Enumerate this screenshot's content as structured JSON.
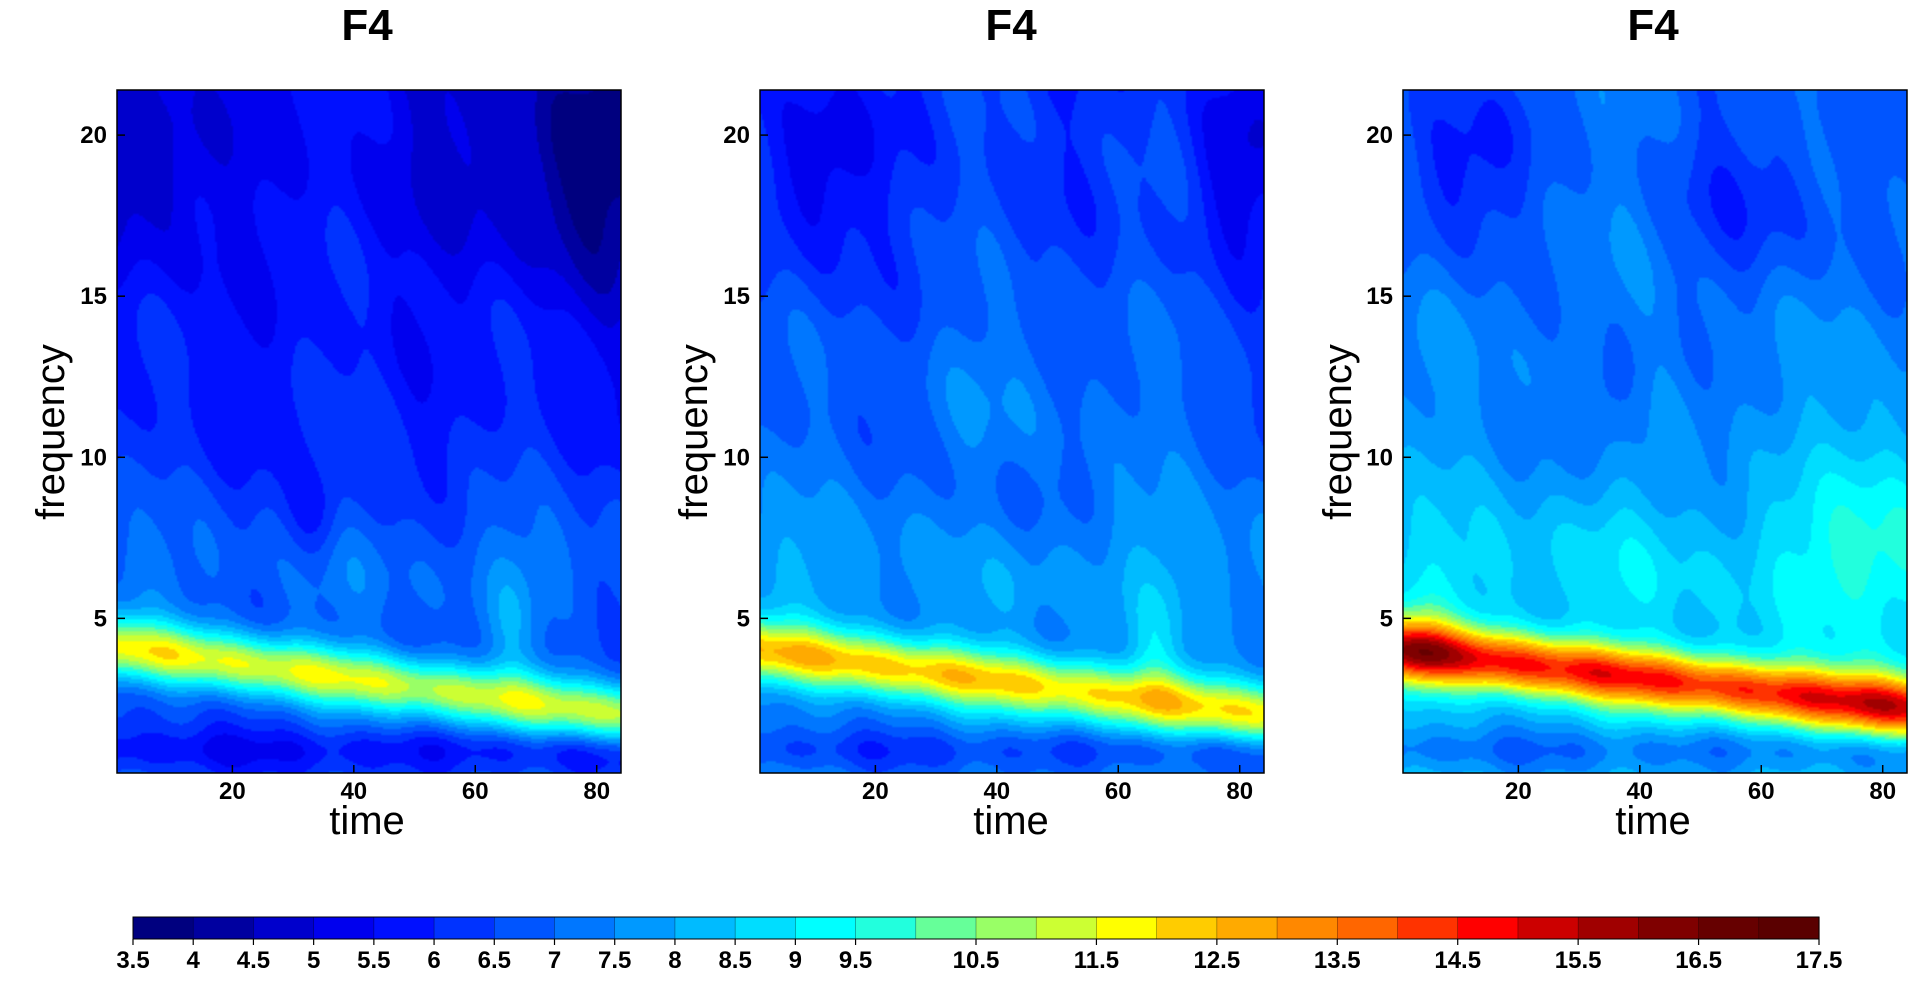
{
  "chart_data": [
    {
      "type": "heatmap",
      "title": "F4",
      "xlabel": "time",
      "ylabel": "frequency",
      "xlim": [
        1,
        84
      ],
      "ylim": [
        0.2,
        21.4
      ],
      "x_ticks": [
        "20",
        "40",
        "60",
        "80"
      ],
      "y_ticks": [
        "5",
        "10",
        "15",
        "20"
      ],
      "description": "field values approximated by a smooth model of the contour map",
      "base": 6.0,
      "band_peak": 11.0,
      "band_center_start": 4.1,
      "band_center_end": 2.0,
      "features": [
        {
          "t": 5,
          "f": 19,
          "rt": 10,
          "rf": 3,
          "amp": -1.2
        },
        {
          "t": 80,
          "f": 19,
          "rt": 14,
          "rf": 4,
          "amp": -1.8
        },
        {
          "t": 60,
          "f": 19,
          "rt": 14,
          "rf": 3,
          "amp": -0.6
        },
        {
          "t": 33,
          "f": 8,
          "rt": 5,
          "rf": 1.5,
          "amp": -1.0
        },
        {
          "t": 66,
          "f": 5,
          "rt": 4,
          "rf": 2,
          "amp": 0.8
        }
      ]
    },
    {
      "type": "heatmap",
      "title": "F4",
      "xlabel": "time",
      "ylabel": "frequency",
      "xlim": [
        1,
        84
      ],
      "ylim": [
        0.2,
        21.4
      ],
      "x_ticks": [
        "20",
        "40",
        "60",
        "80"
      ],
      "y_ticks": [
        "5",
        "10",
        "15",
        "20"
      ],
      "base": 6.8,
      "band_peak": 11.8,
      "band_center_start": 4.0,
      "band_center_end": 2.0,
      "features": [
        {
          "t": 10,
          "f": 19,
          "rt": 9,
          "rf": 3,
          "amp": -1.4
        },
        {
          "t": 80,
          "f": 19,
          "rt": 8,
          "rf": 3,
          "amp": -1.2
        },
        {
          "t": 40,
          "f": 8,
          "rt": 10,
          "rf": 2,
          "amp": -0.6
        },
        {
          "t": 45,
          "f": 12,
          "rt": 25,
          "rf": 3,
          "amp": 0.6
        },
        {
          "t": 66,
          "f": 4,
          "rt": 4,
          "rf": 2,
          "amp": 0.9
        }
      ]
    },
    {
      "type": "heatmap",
      "title": "F4",
      "xlabel": "time",
      "ylabel": "frequency",
      "xlim": [
        1,
        84
      ],
      "ylim": [
        0.2,
        21.4
      ],
      "x_ticks": [
        "20",
        "40",
        "60",
        "80"
      ],
      "y_ticks": [
        "5",
        "10",
        "15",
        "20"
      ],
      "base": 7.6,
      "band_peak": 14.2,
      "band_center_start": 4.0,
      "band_center_end": 2.2,
      "features": [
        {
          "t": 10,
          "f": 19,
          "rt": 10,
          "rf": 3,
          "amp": -1.6
        },
        {
          "t": 60,
          "f": 18,
          "rt": 16,
          "rf": 3,
          "amp": -1.0
        },
        {
          "t": 35,
          "f": 12,
          "rt": 6,
          "rf": 2,
          "amp": -1.0
        },
        {
          "t": 80,
          "f": 8,
          "rt": 12,
          "rf": 4,
          "amp": 1.4
        },
        {
          "t": 4,
          "f": 4,
          "rt": 5,
          "rf": 1.5,
          "amp": 1.6
        },
        {
          "t": 80,
          "f": 2.5,
          "rt": 8,
          "rf": 1.5,
          "amp": 1.0
        }
      ]
    }
  ],
  "colorbar": {
    "ticks": [
      "3.5",
      "4",
      "4.5",
      "5",
      "5.5",
      "6",
      "6.5",
      "7",
      "7.5",
      "8",
      "8.5",
      "9",
      "9.5",
      "10.5",
      "11.5",
      "12.5",
      "13.5",
      "14.5",
      "15.5",
      "16.5",
      "17.5"
    ],
    "range": [
      3.5,
      17.5
    ],
    "colors": [
      "#00007F",
      "#0000A0",
      "#0000CC",
      "#0000EE",
      "#0010FF",
      "#0033FF",
      "#0055FF",
      "#0077FF",
      "#0099FF",
      "#00BBFF",
      "#00DDFF",
      "#00FFFF",
      "#22FFDD",
      "#66FF99",
      "#99FF66",
      "#CCFF33",
      "#FFFF00",
      "#FFCC00",
      "#FFAA00",
      "#FF8800",
      "#FF6600",
      "#FF3300",
      "#FF0000",
      "#CC0000",
      "#A00000",
      "#7F0000",
      "#660000",
      "#5A0000"
    ]
  }
}
